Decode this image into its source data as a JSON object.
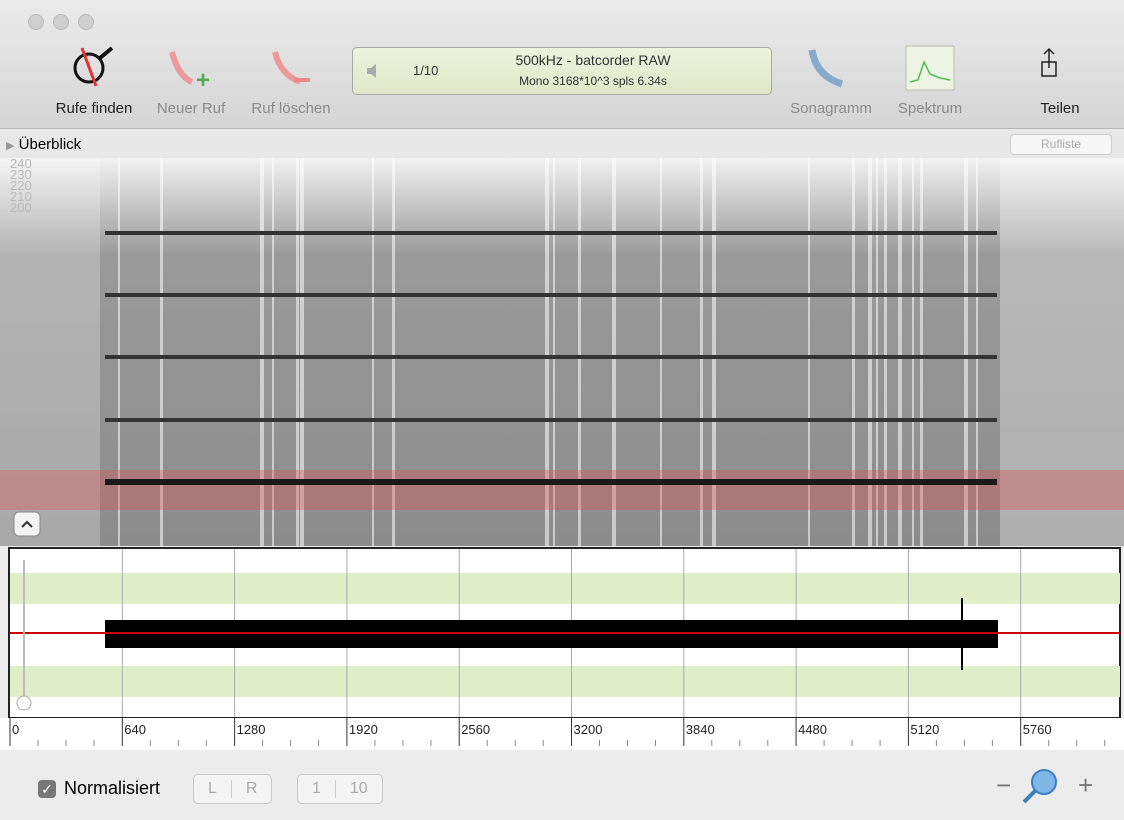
{
  "toolbar": {
    "buttons": [
      "Rufe finden",
      "Neuer Ruf",
      "Ruf löschen",
      "Sonagramm",
      "Spektrum",
      "Teilen"
    ],
    "display": {
      "counter": "1/10",
      "title": "500kHz - batcorder RAW",
      "info": "Mono 3168*10^3 spls 6.34s"
    }
  },
  "overview": {
    "label": "Überblick",
    "button": "Rufliste"
  },
  "spectrogram": {
    "frequency_labels": [
      "240",
      "230",
      "220",
      "210",
      "200"
    ]
  },
  "waveform": {
    "time_labels": [
      "0",
      "640",
      "1280",
      "1920",
      "2560",
      "3200",
      "3840",
      "4480",
      "5120",
      "5760"
    ]
  },
  "footer": {
    "checkbox": "Normalisiert",
    "channels": [
      "L",
      "R"
    ],
    "zoom_steps": [
      "1",
      "10"
    ],
    "zoom_out": "−",
    "zoom_in": "+"
  }
}
